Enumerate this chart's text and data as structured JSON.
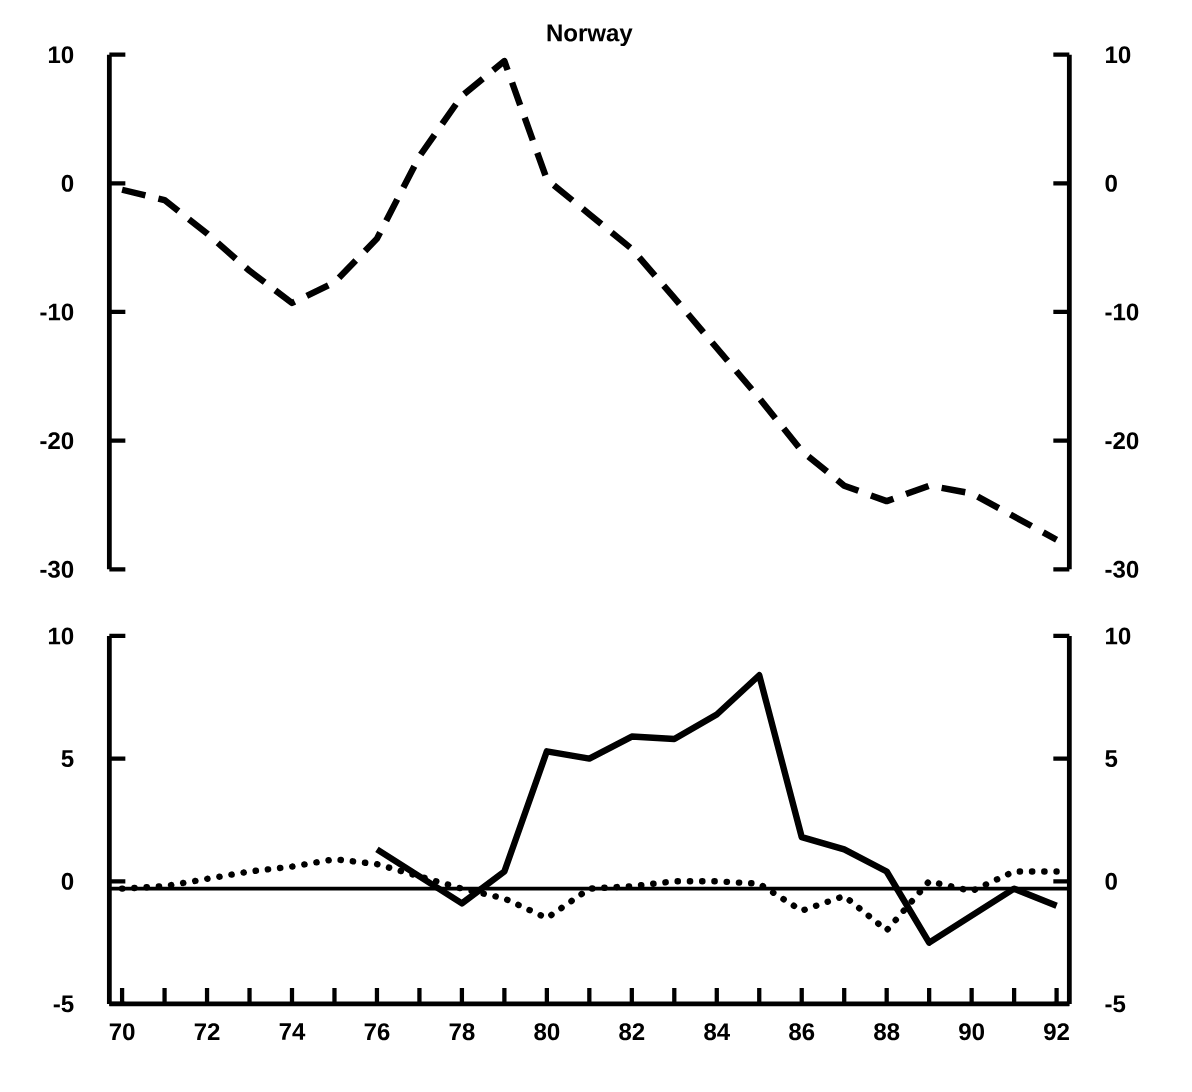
{
  "chart_data": [
    {
      "type": "line",
      "title": "Norway",
      "x": [
        70,
        71,
        72,
        73,
        74,
        75,
        76,
        77,
        78,
        79,
        80,
        81,
        82,
        83,
        84,
        85,
        86,
        87,
        88,
        89,
        90,
        91,
        92
      ],
      "series": [
        {
          "color": "#000000",
          "line_style": "dashed",
          "values": [
            -0.5,
            -1.3,
            -3.9,
            -6.8,
            -9.3,
            -7.7,
            -4.3,
            2.1,
            6.8,
            9.5,
            0.3,
            -2.4,
            -5.1,
            -8.9,
            -12.8,
            -16.7,
            -20.8,
            -23.5,
            -24.7,
            -23.5,
            -24.1,
            -25.9,
            -27.7
          ]
        }
      ],
      "xlim": [
        69.7,
        92.3
      ],
      "ylim": [
        -30,
        10
      ],
      "yticks": [
        -30,
        -20,
        -10,
        0,
        10
      ],
      "y2lim": [
        -30,
        10
      ],
      "y2ticks": [
        -30,
        -20,
        -10,
        0,
        10
      ],
      "tick_labels": "y"
    },
    {
      "type": "line",
      "x": [
        70,
        71,
        72,
        73,
        74,
        75,
        76,
        77,
        78,
        79,
        80,
        81,
        82,
        83,
        84,
        85,
        86,
        87,
        88,
        89,
        90,
        91,
        92
      ],
      "series": [
        {
          "color": "#000000",
          "line_style": "solid",
          "values": [
            null,
            null,
            null,
            null,
            null,
            null,
            1.3,
            0.2,
            -0.9,
            0.4,
            5.3,
            5.0,
            5.9,
            5.8,
            6.8,
            8.4,
            1.8,
            1.3,
            0.4,
            -2.5,
            -1.4,
            -0.3,
            -1.0
          ]
        },
        {
          "color": "#000000",
          "line_style": "dotted",
          "values": [
            -0.3,
            -0.2,
            0.1,
            0.4,
            0.6,
            0.9,
            0.7,
            0.2,
            -0.3,
            -0.7,
            -1.5,
            -0.3,
            -0.2,
            0,
            0,
            -0.1,
            -1.2,
            -0.6,
            -2.0,
            0,
            -0.4,
            0.4,
            0.4
          ]
        }
      ],
      "ref_lines": [
        {
          "axis": "y",
          "value": -0.3,
          "color": "#000000"
        }
      ],
      "xlim": [
        69.7,
        92.3
      ],
      "xticks": [
        70,
        {
          "value": 71,
          "label": null
        },
        72,
        {
          "value": 73,
          "label": null
        },
        74,
        {
          "value": 75,
          "label": null
        },
        76,
        {
          "value": 77,
          "label": null
        },
        78,
        {
          "value": 79,
          "label": null
        },
        80,
        {
          "value": 81,
          "label": null
        },
        82,
        {
          "value": 83,
          "label": null
        },
        84,
        {
          "value": 85,
          "label": null
        },
        86,
        {
          "value": 87,
          "label": null
        },
        88,
        {
          "value": 89,
          "label": null
        },
        90,
        {
          "value": 91,
          "label": null
        },
        92
      ],
      "ylim": [
        -5,
        10
      ],
      "yticks": [
        -5,
        0,
        5,
        10
      ],
      "y2lim": [
        -5,
        10
      ],
      "y2ticks": [
        -5,
        0,
        5,
        10
      ]
    }
  ]
}
